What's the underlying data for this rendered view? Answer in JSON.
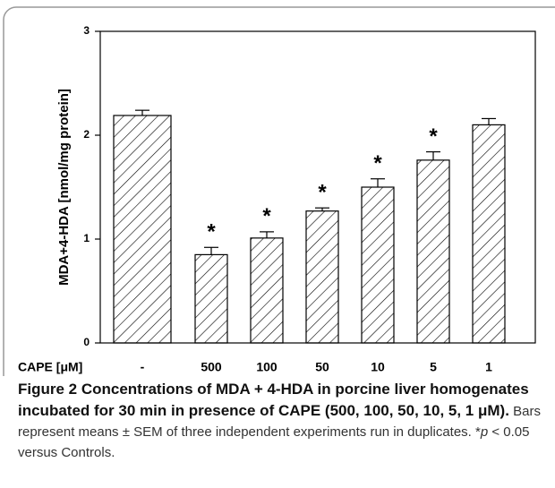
{
  "chart_data": {
    "type": "bar",
    "y_label": "MDA+4-HDA [nmol/mg protein]",
    "x_label": "CAPE [μM]",
    "categories": [
      "-",
      "500",
      "100",
      "50",
      "10",
      "5",
      "1"
    ],
    "values": [
      2.19,
      0.85,
      1.01,
      1.27,
      1.5,
      1.76,
      2.1
    ],
    "errors": [
      0.05,
      0.07,
      0.06,
      0.03,
      0.08,
      0.08,
      0.06
    ],
    "annotations": [
      null,
      "*",
      "*",
      "*",
      "*",
      "*",
      null
    ],
    "color": "#000000",
    "ylim": [
      0,
      3
    ],
    "yticks": [
      0,
      1,
      2,
      3
    ]
  },
  "caption": {
    "bold": "Figure 2 Concentrations of MDA + 4-HDA in porcine liver homogenates incubated for 30 min in presence of CAPE (500, 100, 50, 10, 5, 1 μM).",
    "text_before": " Bars represent means ± SEM of three independent experiments run in duplicates. *",
    "italic": "p",
    "text_after": " < 0.05 versus Controls."
  }
}
